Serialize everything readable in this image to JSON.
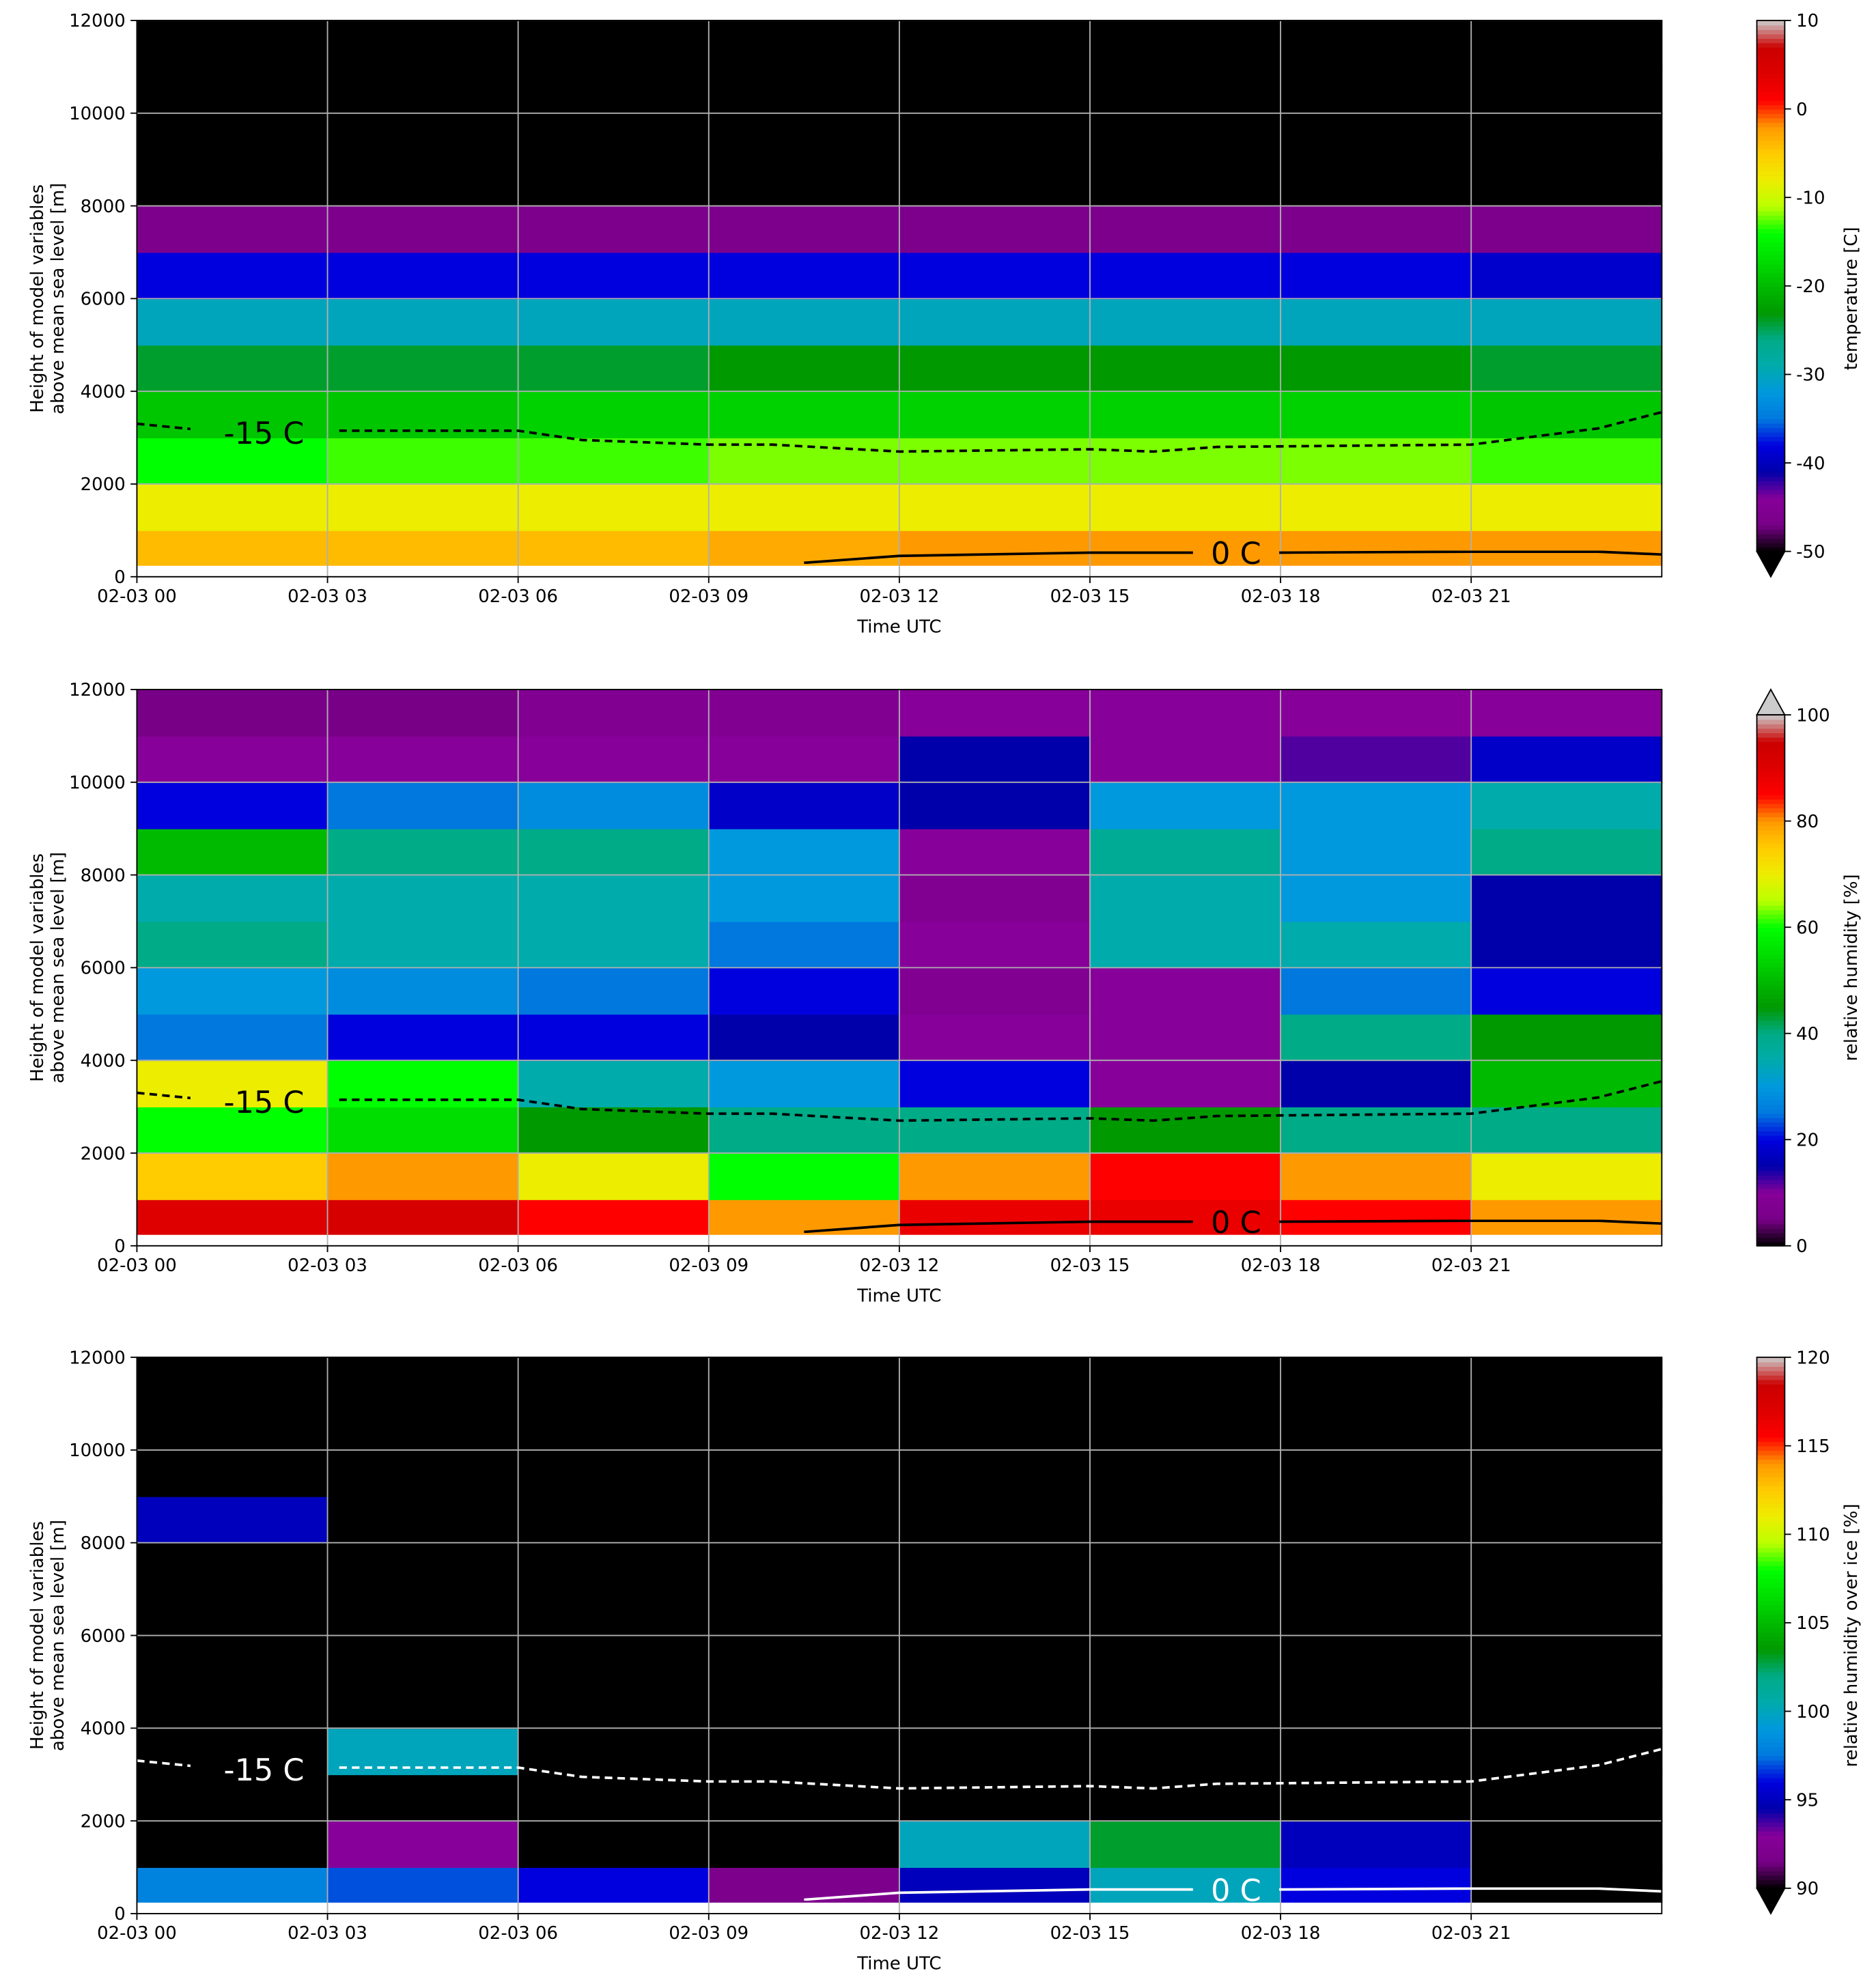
{
  "chart_data": [
    {
      "type": "heatmap",
      "xlabel": "Time UTC",
      "ylabel": [
        "Height of model variables",
        "above mean sea level [m]"
      ],
      "colorbar_label": "temperature [C]",
      "colormap": "nipy_spectral",
      "extend": "min",
      "grid": true,
      "x_edges": [
        0,
        3,
        6,
        9,
        12,
        15,
        18,
        21,
        24
      ],
      "y_edges": [
        250,
        1000,
        2000,
        3000,
        4000,
        5000,
        6000,
        7000,
        8000,
        9000,
        10000,
        11000,
        12000
      ],
      "values": [
        [
          -4,
          -4,
          -4,
          -3,
          -2,
          -2,
          -2,
          -2
        ],
        [
          -8,
          -8,
          -8,
          -8,
          -8,
          -8,
          -8,
          -8
        ],
        [
          -14,
          -13,
          -13,
          -12,
          -12,
          -12,
          -12,
          -13
        ],
        [
          -19,
          -19,
          -18,
          -18,
          -18,
          -18,
          -18,
          -19
        ],
        [
          -24,
          -24,
          -24,
          -23,
          -23,
          -23,
          -23,
          -24
        ],
        [
          -30,
          -30,
          -30,
          -30,
          -30,
          -30,
          -30,
          -30
        ],
        [
          -38,
          -38,
          -38,
          -38,
          -38,
          -38,
          -38,
          -39
        ],
        [
          -46,
          -46,
          -46,
          -46,
          -46,
          -46,
          -46,
          -46
        ],
        [
          -60,
          -60,
          -60,
          -60,
          -60,
          -60,
          -60,
          -60
        ],
        [
          -60,
          -60,
          -60,
          -60,
          -60,
          -60,
          -60,
          -60
        ],
        [
          -60,
          -60,
          -60,
          -60,
          -60,
          -60,
          -60,
          -60
        ],
        [
          -60,
          -60,
          -60,
          -60,
          -60,
          -60,
          -60,
          -60
        ]
      ],
      "xlim": [
        0,
        24
      ],
      "ylim": [
        0,
        12000
      ],
      "xticks": [
        {
          "value": 0,
          "label": "02-03 00"
        },
        {
          "value": 3,
          "label": "02-03 03"
        },
        {
          "value": 6,
          "label": "02-03 06"
        },
        {
          "value": 9,
          "label": "02-03 09"
        },
        {
          "value": 12,
          "label": "02-03 12"
        },
        {
          "value": 15,
          "label": "02-03 15"
        },
        {
          "value": 18,
          "label": "02-03 18"
        },
        {
          "value": 21,
          "label": "02-03 21"
        }
      ],
      "yticks": [
        0,
        2000,
        4000,
        6000,
        8000,
        10000,
        12000
      ],
      "clim": [
        -50,
        10
      ],
      "cticks": [
        -50,
        -40,
        -30,
        -20,
        -10,
        0,
        10
      ],
      "contours": [
        {
          "label": "-15 C",
          "color": "#000000",
          "dashed": true,
          "x": [
            0,
            1.5,
            3,
            6,
            7,
            9,
            10,
            12,
            15,
            16,
            17,
            21,
            23,
            24
          ],
          "y": [
            3300,
            3100,
            3150,
            3150,
            2950,
            2850,
            2850,
            2700,
            2750,
            2700,
            2800,
            2850,
            3200,
            3550
          ]
        },
        {
          "label": "0 C",
          "color": "#000000",
          "dashed": false,
          "x": [
            10.5,
            12,
            15,
            16,
            18,
            21,
            23,
            24
          ],
          "y": [
            300,
            450,
            520,
            520,
            520,
            540,
            540,
            480
          ]
        }
      ]
    },
    {
      "type": "heatmap",
      "xlabel": "Time UTC",
      "ylabel": [
        "Height of model variables",
        "above mean sea level [m]"
      ],
      "colorbar_label": "relative humidity [%]",
      "colormap": "nipy_spectral",
      "extend": "max",
      "grid": true,
      "x_edges": [
        0,
        3,
        6,
        9,
        12,
        15,
        18,
        21,
        24
      ],
      "y_edges": [
        250,
        1000,
        2000,
        3000,
        4000,
        5000,
        6000,
        7000,
        8000,
        9000,
        10000,
        11000,
        12000
      ],
      "values": [
        [
          90,
          92,
          85,
          80,
          88,
          88,
          85,
          80
        ],
        [
          75,
          80,
          70,
          60,
          80,
          85,
          80,
          70
        ],
        [
          60,
          55,
          45,
          40,
          40,
          45,
          40,
          40
        ],
        [
          70,
          60,
          35,
          30,
          20,
          10,
          15,
          50
        ],
        [
          25,
          20,
          20,
          15,
          10,
          10,
          40,
          45
        ],
        [
          30,
          28,
          25,
          20,
          8,
          10,
          25,
          20
        ],
        [
          40,
          35,
          35,
          25,
          10,
          35,
          35,
          15
        ],
        [
          35,
          35,
          35,
          30,
          8,
          35,
          30,
          15
        ],
        [
          50,
          40,
          40,
          30,
          10,
          38,
          30,
          40
        ],
        [
          20,
          25,
          28,
          18,
          15,
          30,
          30,
          35
        ],
        [
          10,
          10,
          10,
          10,
          15,
          10,
          12,
          18
        ],
        [
          5,
          5,
          8,
          8,
          10,
          10,
          10,
          10
        ]
      ],
      "xlim": [
        0,
        24
      ],
      "ylim": [
        0,
        12000
      ],
      "xticks": [
        {
          "value": 0,
          "label": "02-03 00"
        },
        {
          "value": 3,
          "label": "02-03 03"
        },
        {
          "value": 6,
          "label": "02-03 06"
        },
        {
          "value": 9,
          "label": "02-03 09"
        },
        {
          "value": 12,
          "label": "02-03 12"
        },
        {
          "value": 15,
          "label": "02-03 15"
        },
        {
          "value": 18,
          "label": "02-03 18"
        },
        {
          "value": 21,
          "label": "02-03 21"
        }
      ],
      "yticks": [
        0,
        2000,
        4000,
        6000,
        8000,
        10000,
        12000
      ],
      "clim": [
        0,
        100
      ],
      "cticks": [
        0,
        20,
        40,
        60,
        80,
        100
      ],
      "contours": [
        {
          "label": "-15 C",
          "color": "#000000",
          "dashed": true,
          "x": [
            0,
            1.5,
            3,
            6,
            7,
            9,
            10,
            12,
            15,
            16,
            17,
            21,
            23,
            24
          ],
          "y": [
            3300,
            3100,
            3150,
            3150,
            2950,
            2850,
            2850,
            2700,
            2750,
            2700,
            2800,
            2850,
            3200,
            3550
          ]
        },
        {
          "label": "0 C",
          "color": "#000000",
          "dashed": false,
          "x": [
            10.5,
            12,
            15,
            16,
            18,
            21,
            23,
            24
          ],
          "y": [
            300,
            450,
            520,
            520,
            520,
            540,
            540,
            480
          ]
        }
      ]
    },
    {
      "type": "heatmap",
      "xlabel": "Time UTC",
      "ylabel": [
        "Height of model variables",
        "above mean sea level [m]"
      ],
      "colorbar_label": "relative humidity over ice [%]",
      "colormap": "nipy_spectral",
      "extend": "min",
      "grid": true,
      "x_edges": [
        0,
        3,
        6,
        9,
        12,
        15,
        18,
        21,
        24
      ],
      "y_edges": [
        250,
        1000,
        2000,
        3000,
        4000,
        5000,
        6000,
        7000,
        8000,
        9000,
        10000,
        11000,
        12000
      ],
      "values": [
        [
          98,
          97,
          96,
          92,
          95,
          100,
          96,
          90
        ],
        [
          85,
          93,
          85,
          85,
          100,
          103,
          95,
          85
        ],
        [
          85,
          85,
          85,
          85,
          85,
          85,
          85,
          85
        ],
        [
          85,
          100,
          85,
          85,
          85,
          85,
          85,
          85
        ],
        [
          85,
          85,
          85,
          85,
          85,
          85,
          85,
          85
        ],
        [
          85,
          85,
          85,
          85,
          85,
          85,
          85,
          85
        ],
        [
          85,
          85,
          85,
          85,
          85,
          85,
          85,
          85
        ],
        [
          85,
          85,
          85,
          85,
          85,
          85,
          85,
          85
        ],
        [
          95,
          85,
          85,
          85,
          85,
          85,
          85,
          85
        ],
        [
          85,
          85,
          85,
          85,
          85,
          85,
          85,
          85
        ],
        [
          85,
          85,
          85,
          85,
          85,
          85,
          85,
          85
        ],
        [
          85,
          85,
          85,
          85,
          85,
          85,
          85,
          85
        ]
      ],
      "xlim": [
        0,
        24
      ],
      "ylim": [
        0,
        12000
      ],
      "xticks": [
        {
          "value": 0,
          "label": "02-03 00"
        },
        {
          "value": 3,
          "label": "02-03 03"
        },
        {
          "value": 6,
          "label": "02-03 06"
        },
        {
          "value": 9,
          "label": "02-03 09"
        },
        {
          "value": 12,
          "label": "02-03 12"
        },
        {
          "value": 15,
          "label": "02-03 15"
        },
        {
          "value": 18,
          "label": "02-03 18"
        },
        {
          "value": 21,
          "label": "02-03 21"
        }
      ],
      "yticks": [
        0,
        2000,
        4000,
        6000,
        8000,
        10000,
        12000
      ],
      "clim": [
        90,
        120
      ],
      "cticks": [
        90,
        95,
        100,
        105,
        110,
        115,
        120
      ],
      "contours": [
        {
          "label": "-15 C",
          "color": "#ffffff",
          "dashed": true,
          "x": [
            0,
            1.5,
            3,
            6,
            7,
            9,
            10,
            12,
            15,
            16,
            17,
            21,
            23,
            24
          ],
          "y": [
            3300,
            3100,
            3150,
            3150,
            2950,
            2850,
            2850,
            2700,
            2750,
            2700,
            2800,
            2850,
            3200,
            3550
          ]
        },
        {
          "label": "0 C",
          "color": "#ffffff",
          "dashed": false,
          "x": [
            10.5,
            12,
            15,
            16,
            18,
            21,
            23,
            24
          ],
          "y": [
            300,
            450,
            520,
            520,
            520,
            540,
            540,
            480
          ]
        }
      ]
    }
  ]
}
